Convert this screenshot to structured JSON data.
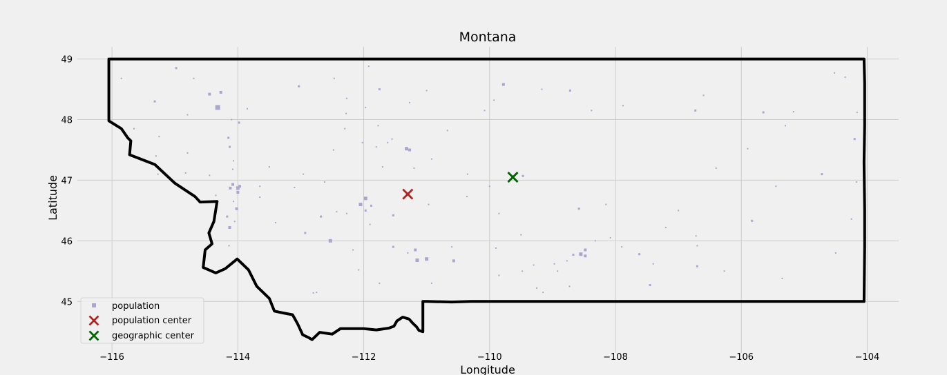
{
  "chart_data": {
    "type": "scatter",
    "title": "Montana",
    "xlabel": "Longitude",
    "ylabel": "Latitude",
    "xlim": [
      -116.55,
      -103.5
    ],
    "ylim": [
      44.15,
      49.2
    ],
    "x_ticks": [
      -116,
      -114,
      -112,
      -110,
      -108,
      -106,
      -104
    ],
    "y_ticks": [
      45,
      46,
      47,
      48,
      49
    ],
    "grid": true,
    "legend": {
      "placement": "bottom-left",
      "entries": [
        {
          "label": "population",
          "color": "#a9a7cc",
          "marker": "square"
        },
        {
          "label": "population center",
          "color": "#b22222",
          "marker": "x"
        },
        {
          "label": "geographic center",
          "color": "#006400",
          "marker": "x"
        }
      ]
    },
    "colors": {
      "background": "#f0f0f0",
      "grid": "#cbcbcb",
      "border": "#000000",
      "population": "#a9a7cc",
      "population_center": "#b22222",
      "geographic_center": "#006400"
    },
    "population_center": [
      -111.3,
      46.77
    ],
    "geographic_center": [
      -109.63,
      47.05
    ],
    "state_border": [
      [
        -116.05,
        49.0
      ],
      [
        -104.05,
        49.0
      ],
      [
        -104.04,
        48.6
      ],
      [
        -104.04,
        47.9
      ],
      [
        -104.05,
        47.3
      ],
      [
        -104.04,
        46.5
      ],
      [
        -104.04,
        45.9
      ],
      [
        -104.05,
        45.0
      ],
      [
        -106.0,
        45.0
      ],
      [
        -108.0,
        45.0
      ],
      [
        -110.0,
        45.0
      ],
      [
        -110.3,
        45.0
      ],
      [
        -110.6,
        44.99
      ],
      [
        -110.99,
        45.0
      ],
      [
        -111.06,
        45.0
      ],
      [
        -111.06,
        44.5
      ],
      [
        -111.12,
        44.52
      ],
      [
        -111.16,
        44.58
      ],
      [
        -111.22,
        44.64
      ],
      [
        -111.28,
        44.71
      ],
      [
        -111.38,
        44.74
      ],
      [
        -111.47,
        44.68
      ],
      [
        -111.52,
        44.59
      ],
      [
        -111.6,
        44.56
      ],
      [
        -111.8,
        44.53
      ],
      [
        -112.0,
        44.55
      ],
      [
        -112.2,
        44.55
      ],
      [
        -112.37,
        44.55
      ],
      [
        -112.5,
        44.46
      ],
      [
        -112.7,
        44.49
      ],
      [
        -112.82,
        44.37
      ],
      [
        -112.87,
        44.4
      ],
      [
        -112.97,
        44.45
      ],
      [
        -113.05,
        44.63
      ],
      [
        -113.13,
        44.78
      ],
      [
        -113.28,
        44.81
      ],
      [
        -113.42,
        44.84
      ],
      [
        -113.5,
        45.05
      ],
      [
        -113.7,
        45.25
      ],
      [
        -113.83,
        45.52
      ],
      [
        -114.01,
        45.7
      ],
      [
        -114.2,
        45.54
      ],
      [
        -114.35,
        45.47
      ],
      [
        -114.55,
        45.56
      ],
      [
        -114.52,
        45.85
      ],
      [
        -114.41,
        45.95
      ],
      [
        -114.46,
        46.13
      ],
      [
        -114.38,
        46.32
      ],
      [
        -114.33,
        46.65
      ],
      [
        -114.6,
        46.64
      ],
      [
        -114.68,
        46.73
      ],
      [
        -115.0,
        46.95
      ],
      [
        -115.32,
        47.26
      ],
      [
        -115.72,
        47.42
      ],
      [
        -115.7,
        47.65
      ],
      [
        -115.75,
        47.7
      ],
      [
        -115.85,
        47.85
      ],
      [
        -116.05,
        47.98
      ],
      [
        -116.05,
        49.0
      ]
    ],
    "population_points": [
      [
        -115.85,
        48.68,
        2
      ],
      [
        -115.32,
        48.3,
        3
      ],
      [
        -114.98,
        48.85,
        3
      ],
      [
        -114.7,
        48.68,
        2
      ],
      [
        -114.45,
        48.42,
        4
      ],
      [
        -114.27,
        48.45,
        4
      ],
      [
        -114.32,
        48.2,
        7
      ],
      [
        -114.1,
        48.0,
        2
      ],
      [
        -113.98,
        47.95,
        3
      ],
      [
        -113.85,
        48.18,
        2
      ],
      [
        -114.15,
        47.7,
        3
      ],
      [
        -114.13,
        47.55,
        3
      ],
      [
        -114.8,
        48.08,
        2
      ],
      [
        -115.25,
        47.72,
        2
      ],
      [
        -115.65,
        47.85,
        2
      ],
      [
        -114.8,
        47.45,
        2
      ],
      [
        -115.3,
        47.4,
        2
      ],
      [
        -114.83,
        47.12,
        2
      ],
      [
        -114.45,
        47.08,
        2
      ],
      [
        -114.07,
        47.32,
        2
      ],
      [
        -114.08,
        47.18,
        2
      ],
      [
        -114.08,
        46.93,
        4
      ],
      [
        -114.0,
        46.87,
        5
      ],
      [
        -114.12,
        46.87,
        4
      ],
      [
        -113.97,
        46.9,
        4
      ],
      [
        -114.0,
        46.8,
        4
      ],
      [
        -114.07,
        46.65,
        2
      ],
      [
        -114.02,
        46.53,
        4
      ],
      [
        -114.35,
        46.75,
        2
      ],
      [
        -114.17,
        46.4,
        3
      ],
      [
        -114.13,
        46.22,
        4
      ],
      [
        -114.05,
        46.32,
        2
      ],
      [
        -113.65,
        46.9,
        2
      ],
      [
        -113.65,
        46.72,
        2
      ],
      [
        -113.5,
        47.22,
        2
      ],
      [
        -113.4,
        46.3,
        2
      ],
      [
        -113.03,
        48.55,
        3
      ],
      [
        -112.47,
        48.68,
        2
      ],
      [
        -112.27,
        48.35,
        2
      ],
      [
        -112.28,
        48.1,
        2
      ],
      [
        -112.3,
        47.85,
        2
      ],
      [
        -112.48,
        47.5,
        2
      ],
      [
        -112.02,
        47.62,
        2
      ],
      [
        -111.75,
        48.5,
        3
      ],
      [
        -111.92,
        48.88,
        2
      ],
      [
        -111.97,
        48.2,
        2
      ],
      [
        -111.77,
        47.9,
        2
      ],
      [
        -111.8,
        47.55,
        2
      ],
      [
        -111.62,
        47.62,
        2
      ],
      [
        -111.32,
        47.52,
        5
      ],
      [
        -111.27,
        47.5,
        4
      ],
      [
        -111.27,
        48.28,
        2
      ],
      [
        -111.0,
        48.48,
        2
      ],
      [
        -111.2,
        47.2,
        2
      ],
      [
        -110.92,
        47.35,
        2
      ],
      [
        -110.67,
        47.82,
        2
      ],
      [
        -111.53,
        46.42,
        3
      ],
      [
        -111.55,
        47.68,
        2
      ],
      [
        -111.7,
        47.22,
        2
      ],
      [
        -110.35,
        47.1,
        2
      ],
      [
        -109.78,
        48.58,
        4
      ],
      [
        -110.08,
        48.15,
        2
      ],
      [
        -109.93,
        48.32,
        2
      ],
      [
        -109.47,
        47.07,
        3
      ],
      [
        -109.17,
        48.5,
        2
      ],
      [
        -108.72,
        48.48,
        3
      ],
      [
        -108.38,
        48.15,
        2
      ],
      [
        -107.88,
        48.23,
        2
      ],
      [
        -112.05,
        46.6,
        5
      ],
      [
        -111.97,
        46.7,
        5
      ],
      [
        -111.97,
        46.5,
        3
      ],
      [
        -111.88,
        46.58,
        3
      ],
      [
        -112.27,
        46.45,
        2
      ],
      [
        -112.68,
        46.4,
        3
      ],
      [
        -112.93,
        46.13,
        3
      ],
      [
        -112.53,
        46.0,
        5
      ],
      [
        -112.17,
        45.85,
        2
      ],
      [
        -112.08,
        45.52,
        2
      ],
      [
        -111.53,
        45.9,
        3
      ],
      [
        -111.18,
        45.85,
        4
      ],
      [
        -111.15,
        45.68,
        5
      ],
      [
        -111.0,
        45.7,
        5
      ],
      [
        -110.57,
        45.67,
        4
      ],
      [
        -110.6,
        45.9,
        2
      ],
      [
        -110.92,
        45.3,
        2
      ],
      [
        -111.3,
        45.8,
        2
      ],
      [
        -111.75,
        45.3,
        2
      ],
      [
        -110.97,
        46.6,
        2
      ],
      [
        -109.9,
        45.88,
        2
      ],
      [
        -109.85,
        46.45,
        2
      ],
      [
        -109.85,
        45.43,
        2
      ],
      [
        -109.48,
        45.5,
        2
      ],
      [
        -109.3,
        45.6,
        2
      ],
      [
        -109.25,
        45.22,
        2
      ],
      [
        -109.15,
        45.15,
        2
      ],
      [
        -108.92,
        45.5,
        2
      ],
      [
        -108.97,
        45.62,
        2
      ],
      [
        -108.77,
        45.67,
        2
      ],
      [
        -108.73,
        45.25,
        2
      ],
      [
        -108.67,
        45.77,
        3
      ],
      [
        -108.55,
        45.78,
        5
      ],
      [
        -108.48,
        45.75,
        4
      ],
      [
        -108.48,
        45.85,
        4
      ],
      [
        -108.58,
        46.53,
        3
      ],
      [
        -108.32,
        46.0,
        2
      ],
      [
        -108.08,
        46.05,
        2
      ],
      [
        -107.9,
        45.9,
        2
      ],
      [
        -107.62,
        45.78,
        3
      ],
      [
        -107.45,
        45.27,
        3
      ],
      [
        -107.2,
        46.22,
        2
      ],
      [
        -106.7,
        45.58,
        3
      ],
      [
        -106.72,
        46.08,
        2
      ],
      [
        -106.7,
        45.92,
        2
      ],
      [
        -106.6,
        48.4,
        2
      ],
      [
        -106.73,
        48.15,
        3
      ],
      [
        -105.65,
        48.12,
        3
      ],
      [
        -105.17,
        48.13,
        2
      ],
      [
        -104.2,
        47.68,
        3
      ],
      [
        -105.45,
        46.9,
        2
      ],
      [
        -105.83,
        46.33,
        3
      ],
      [
        -104.72,
        47.1,
        3
      ],
      [
        -104.52,
        48.77,
        2
      ],
      [
        -104.35,
        48.7,
        2
      ],
      [
        -104.16,
        48.12,
        2
      ],
      [
        -104.17,
        46.97,
        2
      ],
      [
        -104.5,
        45.8,
        2
      ],
      [
        -104.25,
        46.36,
        2
      ],
      [
        -105.35,
        45.38,
        2
      ],
      [
        -106.27,
        45.5,
        2
      ],
      [
        -107.4,
        45.62,
        2
      ],
      [
        -112.75,
        45.15,
        2
      ],
      [
        -112.8,
        45.14,
        2
      ],
      [
        -114.14,
        45.92,
        2
      ],
      [
        -113.92,
        45.63,
        2
      ],
      [
        -115.27,
        47.1,
        2
      ],
      [
        -113.1,
        46.88,
        2
      ],
      [
        -112.96,
        47.1,
        2
      ],
      [
        -112.62,
        46.97,
        2
      ],
      [
        -112.43,
        46.48,
        2
      ],
      [
        -111.9,
        46.27,
        2
      ],
      [
        -110.36,
        46.73,
        2
      ],
      [
        -110.0,
        46.9,
        2
      ],
      [
        -109.5,
        46.1,
        2
      ],
      [
        -108.15,
        46.6,
        2
      ],
      [
        -107.0,
        46.5,
        2
      ],
      [
        -106.4,
        47.2,
        2
      ],
      [
        -105.9,
        47.52,
        2
      ],
      [
        -105.3,
        47.9,
        2
      ]
    ]
  }
}
